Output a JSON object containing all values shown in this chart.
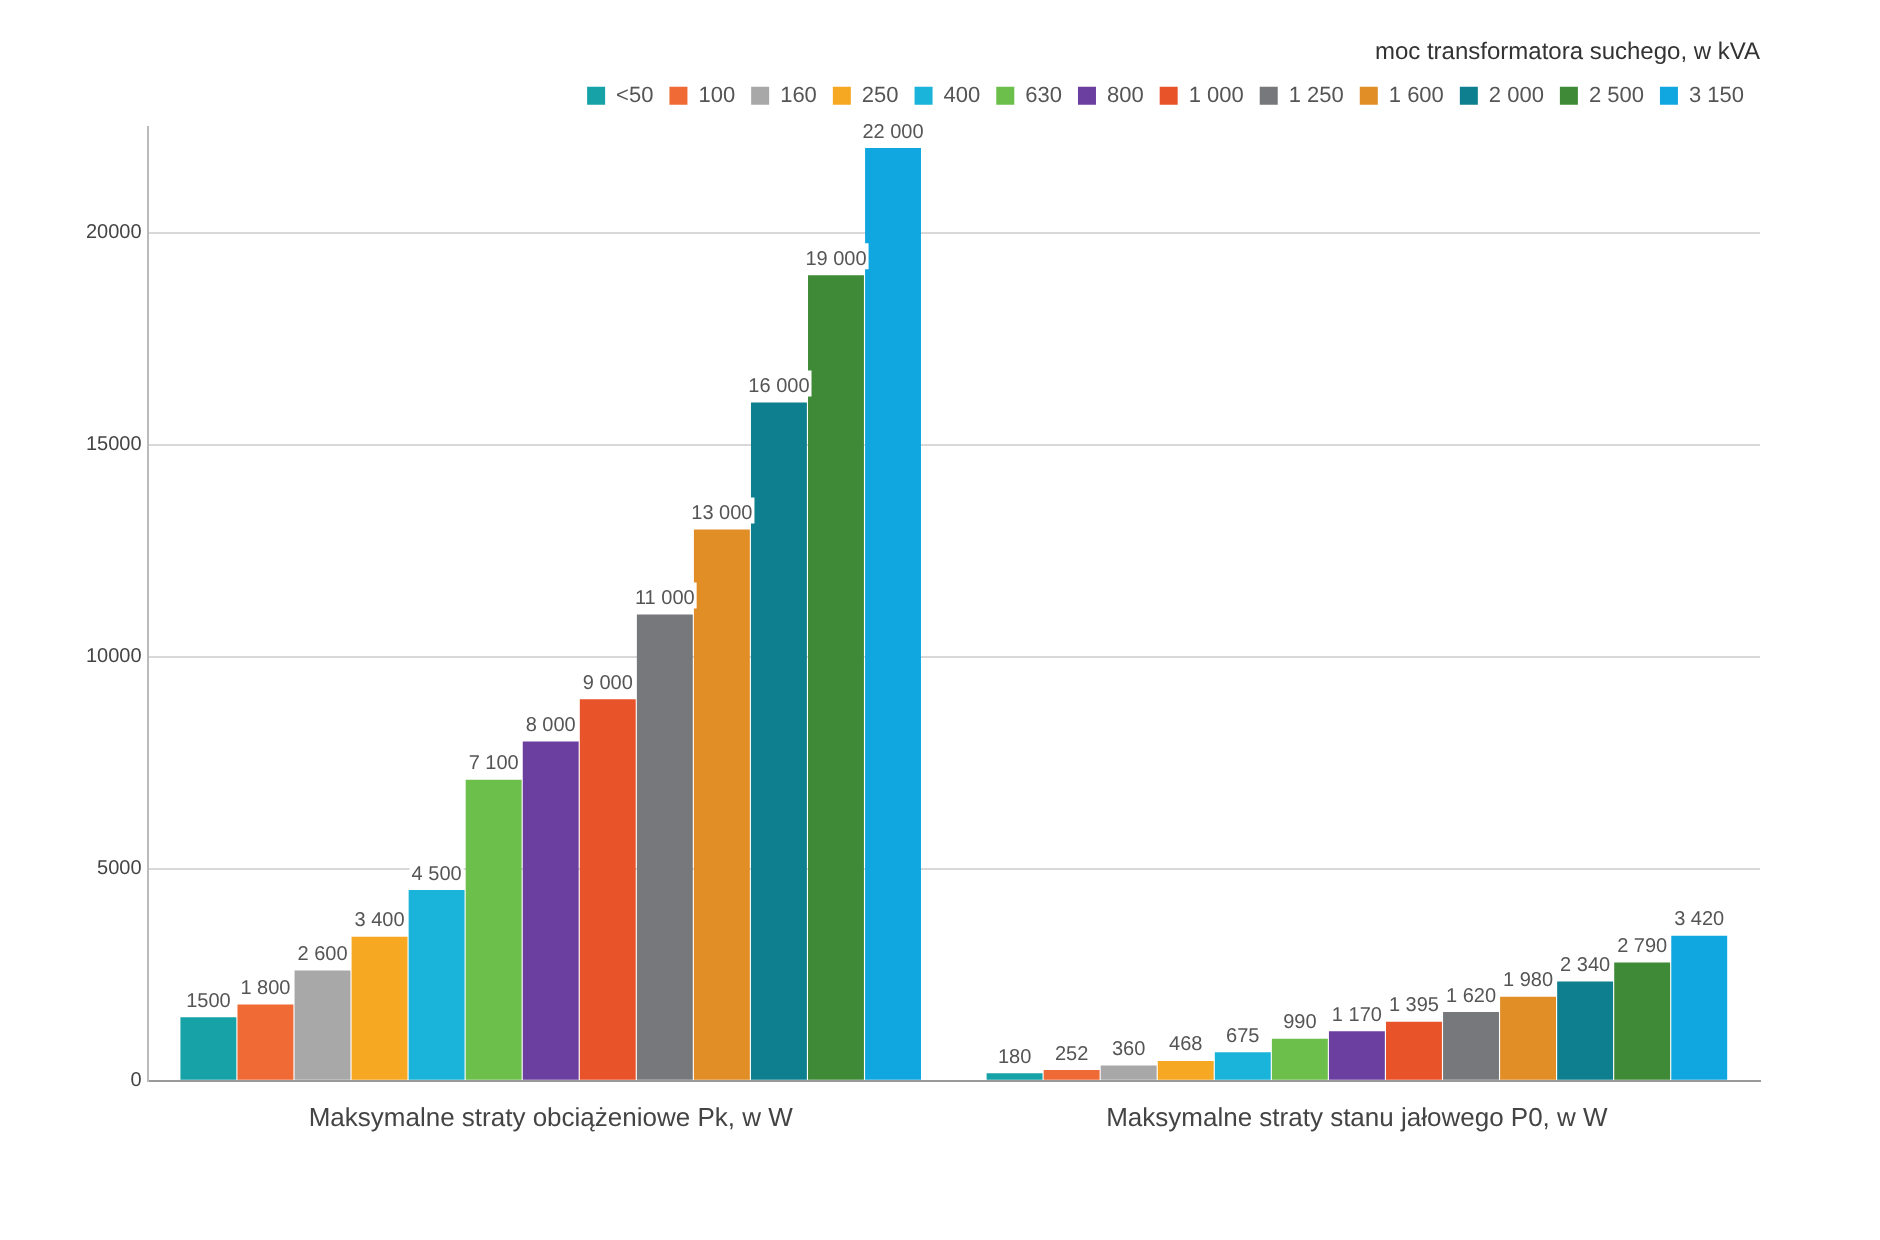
{
  "chart_data": {
    "type": "bar",
    "legend_title": "moc transformatora suchego, w kVA",
    "legend": "top",
    "categories": [
      "Maksymalne straty obciążeniowe Pk, w W",
      "Maksymalne straty stanu jałowego P0, w W"
    ],
    "ylim": [
      0,
      22500
    ],
    "yticks": [
      0,
      5000,
      10000,
      15000,
      20000
    ],
    "grid": "y",
    "series": [
      {
        "name": "<50",
        "color": "#17a2a8",
        "values": [
          1500,
          180
        ],
        "value_labels": [
          "1500",
          "180"
        ]
      },
      {
        "name": "100",
        "color": "#f06a35",
        "values": [
          1800,
          252
        ],
        "value_labels": [
          "1 800",
          "252"
        ]
      },
      {
        "name": "160",
        "color": "#a8a8a8",
        "values": [
          2600,
          360
        ],
        "value_labels": [
          "2 600",
          "360"
        ]
      },
      {
        "name": "250",
        "color": "#f7a823",
        "values": [
          3400,
          468
        ],
        "value_labels": [
          "3 400",
          "468"
        ]
      },
      {
        "name": "400",
        "color": "#1ab3d9",
        "values": [
          4500,
          675
        ],
        "value_labels": [
          "4 500",
          "675"
        ]
      },
      {
        "name": "630",
        "color": "#6bbf4a",
        "values": [
          7100,
          990
        ],
        "value_labels": [
          "7 100",
          "990"
        ]
      },
      {
        "name": "800",
        "color": "#6b3fa0",
        "values": [
          8000,
          1170
        ],
        "value_labels": [
          "8 000",
          "1 170"
        ]
      },
      {
        "name": "1 000",
        "color": "#e8532a",
        "values": [
          9000,
          1395
        ],
        "value_labels": [
          "9 000",
          "1 395"
        ]
      },
      {
        "name": "1 250",
        "color": "#77787b",
        "values": [
          11000,
          1620
        ],
        "value_labels": [
          "11 000",
          "1 620"
        ]
      },
      {
        "name": "1 600",
        "color": "#e08e25",
        "values": [
          13000,
          1980
        ],
        "value_labels": [
          "13 000",
          "1 980"
        ]
      },
      {
        "name": "2 000",
        "color": "#0d7f8e",
        "values": [
          16000,
          2340
        ],
        "value_labels": [
          "16 000",
          "2 340"
        ]
      },
      {
        "name": "2 500",
        "color": "#3f8a37",
        "values": [
          19000,
          2790
        ],
        "value_labels": [
          "19 000",
          "2 790"
        ]
      },
      {
        "name": "3 150",
        "color": "#10a7e0",
        "values": [
          22000,
          3420
        ],
        "value_labels": [
          "22 000",
          "3 420"
        ]
      }
    ]
  }
}
